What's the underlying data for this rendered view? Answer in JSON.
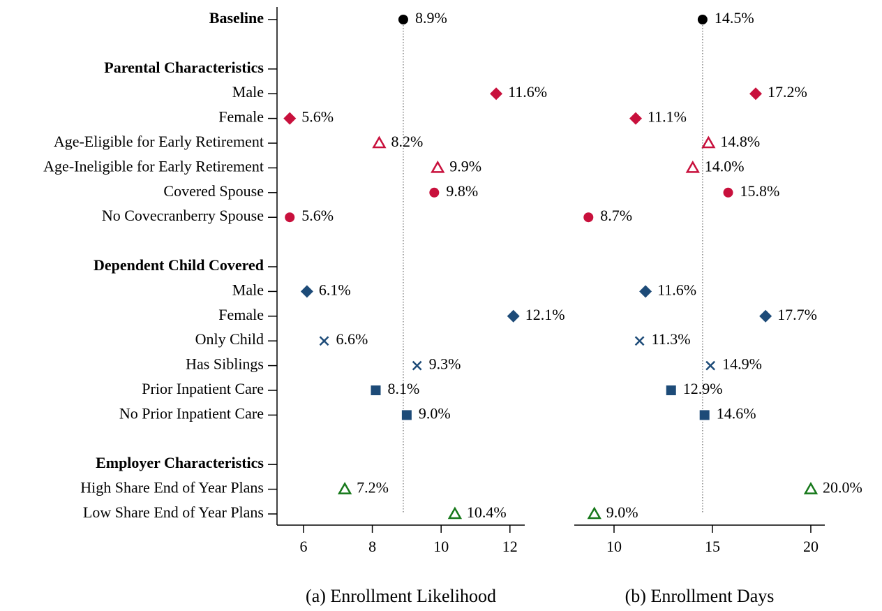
{
  "chart_data": [
    {
      "type": "dot",
      "xlabel": "(a) Enrollment Likelihood",
      "categories": [
        "Baseline",
        null,
        "Parental Characteristics",
        "Male",
        "Female",
        "Age-Eligible for Early Retirement",
        "Age-Ineligible for Early Retirement",
        "Covered Spouse",
        "No Covecranberry Spouse",
        null,
        "Dependent Child Covered",
        "Male",
        "Female",
        "Only Child",
        "Has Siblings",
        "Prior Inpatient Care",
        "No Prior Inpatient Care",
        null,
        "Employer Characteristics",
        "High Share End of Year Plans",
        "Low Share End of Year Plans"
      ],
      "label_weights": [
        "bold",
        "normal",
        "bold",
        "normal",
        "normal",
        "normal",
        "normal",
        "normal",
        "normal",
        "normal",
        "bold",
        "normal",
        "normal",
        "normal",
        "normal",
        "normal",
        "normal",
        "normal",
        "bold",
        "normal",
        "normal"
      ],
      "markers": [
        "circle",
        null,
        null,
        "diamond",
        "diamond",
        "triangle",
        "triangle",
        "circle",
        "circle",
        null,
        null,
        "diamond",
        "diamond",
        "x",
        "x",
        "square",
        "square",
        null,
        null,
        "triangle",
        "triangle"
      ],
      "colors": [
        "#000000",
        null,
        null,
        "#c8103c",
        "#c8103c",
        "#c8103c",
        "#c8103c",
        "#c8103c",
        "#c8103c",
        null,
        null,
        "#1d4b78",
        "#1d4b78",
        "#1d4b78",
        "#1d4b78",
        "#1d4b78",
        "#1d4b78",
        null,
        null,
        "#16781a",
        "#16781a"
      ],
      "values": [
        8.9,
        null,
        null,
        11.6,
        5.6,
        8.2,
        9.9,
        9.8,
        5.6,
        null,
        null,
        6.1,
        12.1,
        6.6,
        9.3,
        8.1,
        9.0,
        null,
        null,
        7.2,
        10.4
      ],
      "value_labels": [
        "8.9%",
        null,
        null,
        "11.6%",
        "5.6%",
        "8.2%",
        "9.9%",
        "9.8%",
        "5.6%",
        null,
        null,
        "6.1%",
        "12.1%",
        "6.6%",
        "9.3%",
        "8.1%",
        "9.0%",
        null,
        null,
        "7.2%",
        "10.4%"
      ],
      "xlim": [
        5.23,
        12.43
      ],
      "xticks": [
        6,
        8,
        10,
        12
      ]
    },
    {
      "type": "dot",
      "xlabel": "(b) Enrollment Days",
      "values": [
        14.5,
        null,
        null,
        17.2,
        11.1,
        14.8,
        14.0,
        15.8,
        8.7,
        null,
        null,
        11.6,
        17.7,
        11.3,
        14.9,
        12.9,
        14.6,
        null,
        null,
        20.0,
        9.0
      ],
      "value_labels": [
        "14.5%",
        null,
        null,
        "17.2%",
        "11.1%",
        "14.8%",
        "14.0%",
        "15.8%",
        "8.7%",
        null,
        null,
        "11.6%",
        "17.7%",
        "11.3%",
        "14.9%",
        "12.9%",
        "14.6%",
        null,
        null,
        "20.0%",
        "9.0%"
      ],
      "xlim": [
        7.98,
        20.71
      ],
      "xticks": [
        10,
        15,
        20
      ]
    }
  ]
}
